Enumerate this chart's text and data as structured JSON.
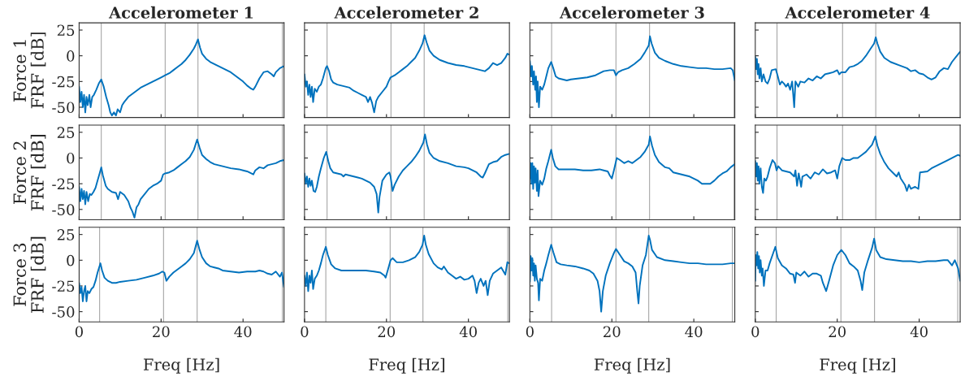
{
  "chart_data": [
    {
      "type": "line",
      "title": "Accelerometer 1",
      "ylabel": "Force 1\nFRF [dB]",
      "xlim": [
        0,
        50
      ],
      "ylim": [
        -60,
        32
      ],
      "xticks": [
        0,
        20,
        40
      ],
      "yticks": [
        -50,
        -25,
        0,
        25
      ],
      "tick_labels": "y",
      "ref_lines": [
        {
          "axis": "x",
          "value": 5.4,
          "color": "#a6a6a6"
        },
        {
          "axis": "x",
          "value": 21,
          "color": "#a6a6a6"
        },
        {
          "axis": "x",
          "value": 29,
          "color": "#a6a6a6"
        },
        {
          "axis": "x",
          "value": 49.6,
          "color": "#a6a6a6"
        }
      ],
      "x": [
        0,
        0.3,
        0.6,
        0.9,
        1.2,
        1.5,
        1.8,
        2.1,
        2.5,
        2.8,
        3.2,
        3.6,
        4.2,
        4.8,
        5.4,
        6.0,
        6.6,
        7.2,
        7.6,
        8.0,
        8.5,
        9.0,
        9.4,
        10,
        10.5,
        11,
        12,
        13,
        14,
        15,
        16,
        17,
        18,
        19,
        20,
        21,
        22,
        23,
        24,
        25,
        26,
        27,
        28,
        28.5,
        29,
        29.5,
        30,
        31,
        32,
        33,
        34,
        35,
        36,
        37,
        38,
        39,
        40,
        41,
        42,
        42.5,
        43,
        44,
        45,
        46,
        47,
        47.5,
        48,
        49,
        50
      ],
      "series": [
        {
          "color": "#0072bd",
          "values": [
            -30,
            -45,
            -35,
            -50,
            -38,
            -55,
            -40,
            -48,
            -38,
            -50,
            -40,
            -38,
            -33,
            -27,
            -23,
            -30,
            -40,
            -48,
            -55,
            -58,
            -55,
            -58,
            -52,
            -55,
            -48,
            -45,
            -40,
            -37,
            -34,
            -31,
            -29,
            -27,
            -25,
            -23,
            -21,
            -19,
            -17,
            -14,
            -11,
            -8,
            -4,
            1,
            7,
            11,
            16,
            8,
            2,
            -3,
            -6,
            -8,
            -10,
            -12,
            -14,
            -16,
            -19,
            -22,
            -25,
            -29,
            -32,
            -33,
            -30,
            -22,
            -16,
            -15,
            -18,
            -20,
            -16,
            -12,
            -10
          ]
        }
      ]
    },
    {
      "type": "line",
      "title": "Accelerometer 2",
      "xlim": [
        0,
        50
      ],
      "ylim": [
        -60,
        32
      ],
      "xticks": [
        0,
        20,
        40
      ],
      "yticks": [
        -50,
        -25,
        0,
        25
      ],
      "tick_labels": false,
      "ref_lines": [
        {
          "axis": "x",
          "value": 5.5,
          "color": "#a6a6a6"
        },
        {
          "axis": "x",
          "value": 21.1,
          "color": "#a6a6a6"
        },
        {
          "axis": "x",
          "value": 29.2,
          "color": "#a6a6a6"
        }
      ],
      "x": [
        0,
        0.3,
        0.6,
        0.9,
        1.2,
        1.5,
        1.8,
        2.1,
        2.5,
        3,
        3.5,
        4,
        4.5,
        5.2,
        5.5,
        6,
        6.5,
        7,
        8,
        9,
        10,
        11,
        12,
        13,
        14,
        15,
        15.5,
        16,
        16.5,
        17,
        17.5,
        18,
        19,
        20,
        20.5,
        21,
        22,
        23,
        24,
        25,
        26,
        27,
        28,
        28.8,
        29.3,
        29.8,
        30.5,
        31.5,
        33,
        35,
        37,
        39,
        41,
        43,
        44,
        45,
        46,
        47,
        48,
        49,
        49.5,
        50
      ],
      "series": [
        {
          "color": "#0072bd",
          "values": [
            -18,
            -30,
            -25,
            -38,
            -28,
            -40,
            -30,
            -45,
            -32,
            -35,
            -30,
            -28,
            -22,
            -12,
            -10,
            -15,
            -23,
            -26,
            -28,
            -29,
            -30,
            -31,
            -34,
            -36,
            -38,
            -40,
            -45,
            -40,
            -46,
            -55,
            -44,
            -40,
            -35,
            -30,
            -25,
            -21,
            -19,
            -16,
            -13,
            -10,
            -6,
            -2,
            5,
            12,
            20,
            13,
            5,
            0,
            -4,
            -7,
            -9,
            -10,
            -12,
            -14,
            -15,
            -12,
            -7,
            -9,
            -7,
            -2,
            2,
            1
          ]
        }
      ]
    },
    {
      "type": "line",
      "title": "Accelerometer 3",
      "xlim": [
        0,
        50
      ],
      "ylim": [
        -60,
        32
      ],
      "xticks": [
        0,
        20,
        40
      ],
      "yticks": [
        -50,
        -25,
        0,
        25
      ],
      "tick_labels": false,
      "ref_lines": [
        {
          "axis": "x",
          "value": 5.3,
          "color": "#a6a6a6"
        },
        {
          "axis": "x",
          "value": 21,
          "color": "#a6a6a6"
        },
        {
          "axis": "x",
          "value": 29.2,
          "color": "#a6a6a6"
        },
        {
          "axis": "x",
          "value": 49.8,
          "color": "#a6a6a6"
        }
      ],
      "x": [
        0,
        0.3,
        0.5,
        0.8,
        1.0,
        1.3,
        1.5,
        1.7,
        1.9,
        2.2,
        2.5,
        3,
        3.5,
        4,
        4.5,
        5.2,
        5.7,
        6.3,
        7,
        8,
        9,
        10,
        12,
        14,
        16,
        17,
        18,
        19.5,
        20.5,
        21,
        21.5,
        22.5,
        24,
        25.5,
        27,
        28,
        29,
        29.3,
        29.7,
        30.5,
        31.5,
        33,
        35,
        37,
        39,
        41,
        43,
        45,
        47,
        49,
        49.5,
        50
      ],
      "series": [
        {
          "color": "#0072bd",
          "values": [
            -5,
            -20,
            -10,
            -28,
            -15,
            -33,
            -20,
            -45,
            -25,
            -50,
            -30,
            -33,
            -28,
            -20,
            -12,
            -6,
            -12,
            -20,
            -22,
            -23,
            -24,
            -23,
            -22,
            -21,
            -19,
            -17,
            -15,
            -14,
            -14,
            -19,
            -16,
            -14,
            -12,
            -8,
            -3,
            3,
            10,
            19,
            12,
            3,
            -2,
            -5,
            -8,
            -10,
            -11,
            -12,
            -12,
            -13,
            -13,
            -12,
            -14,
            -24
          ]
        }
      ]
    },
    {
      "type": "line",
      "title": "Accelerometer 4",
      "xlim": [
        0,
        50
      ],
      "ylim": [
        -60,
        32
      ],
      "xticks": [
        0,
        20,
        40
      ],
      "yticks": [
        -50,
        -25,
        0,
        25
      ],
      "tick_labels": false,
      "ref_lines": [
        {
          "axis": "x",
          "value": 5.3,
          "color": "#a6a6a6"
        },
        {
          "axis": "x",
          "value": 21.3,
          "color": "#a6a6a6"
        },
        {
          "axis": "x",
          "value": 29.4,
          "color": "#a6a6a6"
        }
      ],
      "x": [
        0,
        0.2,
        0.4,
        0.6,
        0.8,
        1.0,
        1.3,
        1.6,
        2,
        2.5,
        3,
        3.5,
        4,
        5,
        5.5,
        6,
        6.5,
        7,
        7.5,
        8,
        8.5,
        9,
        9.5,
        9.8,
        10.5,
        11,
        12,
        13,
        14,
        15,
        16,
        17,
        18,
        19,
        20,
        20.5,
        21,
        22,
        23,
        24,
        25,
        26,
        27,
        28,
        29,
        29.4,
        29.8,
        30.5,
        31.5,
        33,
        35,
        37,
        38,
        39,
        40,
        41,
        42,
        43,
        44,
        45,
        46,
        47,
        48,
        49,
        50
      ],
      "series": [
        {
          "color": "#0072bd",
          "values": [
            -1,
            -13,
            -3,
            -18,
            -8,
            -22,
            -12,
            -25,
            -18,
            -25,
            -27,
            -22,
            -14,
            -13,
            -20,
            -28,
            -25,
            -27,
            -30,
            -27,
            -33,
            -25,
            -50,
            -25,
            -30,
            -25,
            -26,
            -22,
            -24,
            -20,
            -22,
            -18,
            -17,
            -16,
            -14,
            -18,
            -16,
            -16,
            -11,
            -10,
            -8,
            -5,
            0,
            6,
            12,
            18,
            12,
            4,
            -2,
            -6,
            -9,
            -12,
            -15,
            -14,
            -17,
            -18,
            -21,
            -23,
            -21,
            -15,
            -12,
            -13,
            -6,
            -1,
            4
          ]
        }
      ]
    },
    {
      "type": "line",
      "ylabel": "Force 2\nFRF [dB]",
      "xlim": [
        0,
        50
      ],
      "ylim": [
        -60,
        32
      ],
      "xticks": [
        0,
        20,
        40
      ],
      "yticks": [
        -50,
        -25,
        0,
        25
      ],
      "tick_labels": "y",
      "ref_lines": [
        {
          "axis": "x",
          "value": 5.4,
          "color": "#a6a6a6"
        },
        {
          "axis": "x",
          "value": 21,
          "color": "#a6a6a6"
        },
        {
          "axis": "x",
          "value": 29,
          "color": "#a6a6a6"
        },
        {
          "axis": "x",
          "value": 49.6,
          "color": "#a6a6a6"
        }
      ],
      "x": [
        0,
        0.3,
        0.6,
        0.9,
        1.2,
        1.5,
        1.8,
        2.2,
        2.6,
        3,
        3.5,
        4,
        4.5,
        5,
        5.4,
        5.8,
        6.5,
        7,
        8,
        9,
        9.5,
        10,
        11,
        12,
        12.5,
        13,
        13.5,
        14,
        14.5,
        15,
        16,
        17,
        18,
        19,
        20,
        20.5,
        21,
        22,
        23,
        24,
        25,
        26,
        27,
        28,
        28.8,
        29.4,
        30,
        31,
        32,
        33,
        35,
        37,
        39,
        40,
        41,
        42,
        42.5,
        43,
        44,
        45,
        46,
        48,
        49,
        50
      ],
      "series": [
        {
          "color": "#0072bd",
          "values": [
            -28,
            -42,
            -30,
            -40,
            -32,
            -45,
            -33,
            -42,
            -35,
            -36,
            -33,
            -29,
            -22,
            -15,
            -9,
            -17,
            -27,
            -30,
            -33,
            -34,
            -40,
            -33,
            -36,
            -42,
            -48,
            -52,
            -58,
            -48,
            -45,
            -40,
            -35,
            -30,
            -27,
            -25,
            -22,
            -16,
            -15,
            -14,
            -12,
            -9,
            -6,
            -3,
            1,
            8,
            18,
            10,
            3,
            -1,
            -4,
            -6,
            -8,
            -10,
            -11,
            -12,
            -13,
            -15,
            -16,
            -12,
            -9,
            -10,
            -7,
            -5,
            -3,
            -2
          ]
        }
      ]
    },
    {
      "type": "line",
      "xlim": [
        0,
        50
      ],
      "ylim": [
        -60,
        32
      ],
      "xticks": [
        0,
        20,
        40
      ],
      "yticks": [
        -50,
        -25,
        0,
        25
      ],
      "tick_labels": false,
      "ref_lines": [
        {
          "axis": "x",
          "value": 5.5,
          "color": "#a6a6a6"
        },
        {
          "axis": "x",
          "value": 21.1,
          "color": "#a6a6a6"
        },
        {
          "axis": "x",
          "value": 29.2,
          "color": "#a6a6a6"
        }
      ],
      "x": [
        0,
        0.3,
        0.6,
        0.9,
        1.2,
        1.5,
        1.8,
        2.2,
        2.6,
        3,
        3.5,
        4,
        4.7,
        5.3,
        5.8,
        6.3,
        7,
        8,
        9,
        9.5,
        10,
        11,
        12,
        13,
        14,
        15,
        16,
        17,
        17.6,
        18,
        18.3,
        19,
        20,
        20.7,
        21,
        21.5,
        22,
        23,
        24,
        25,
        26,
        27,
        28,
        29,
        29.4,
        29.9,
        30.5,
        31.5,
        33,
        35,
        37,
        39,
        40,
        41,
        42,
        43,
        43.5,
        44,
        45,
        46,
        47,
        48,
        49,
        50
      ],
      "series": [
        {
          "color": "#0072bd",
          "values": [
            -15,
            -25,
            -18,
            -28,
            -20,
            -27,
            -22,
            -32,
            -33,
            -28,
            -18,
            -10,
            0,
            6,
            -3,
            -10,
            -14,
            -15,
            -16,
            -18,
            -16,
            -17,
            -18,
            -19,
            -20,
            -22,
            -24,
            -28,
            -35,
            -53,
            -38,
            -22,
            -16,
            -14,
            -18,
            -32,
            -26,
            -18,
            -12,
            -8,
            -4,
            1,
            7,
            15,
            23,
            13,
            5,
            0,
            -3,
            -5,
            -8,
            -9,
            -10,
            -12,
            -14,
            -18,
            -19,
            -15,
            -6,
            -4,
            -3,
            1,
            3,
            4
          ]
        }
      ]
    },
    {
      "type": "line",
      "xlim": [
        0,
        50
      ],
      "ylim": [
        -60,
        32
      ],
      "xticks": [
        0,
        20,
        40
      ],
      "yticks": [
        -50,
        -25,
        0,
        25
      ],
      "tick_labels": false,
      "ref_lines": [
        {
          "axis": "x",
          "value": 5.3,
          "color": "#a6a6a6"
        },
        {
          "axis": "x",
          "value": 21,
          "color": "#a6a6a6"
        },
        {
          "axis": "x",
          "value": 29.2,
          "color": "#a6a6a6"
        },
        {
          "axis": "x",
          "value": 49.8,
          "color": "#a6a6a6"
        }
      ],
      "x": [
        0,
        0.2,
        0.4,
        0.6,
        0.8,
        1.0,
        1.2,
        1.4,
        1.7,
        1.9,
        2.1,
        2.5,
        3,
        3.5,
        4,
        4.5,
        5.2,
        5.6,
        6.2,
        7,
        9,
        11,
        13,
        15,
        17,
        18,
        19,
        19.5,
        20,
        20.5,
        21.2,
        22,
        23,
        24,
        25,
        26,
        27,
        28,
        29,
        29.3,
        29.8,
        30.5,
        31.5,
        33,
        34,
        35,
        36,
        38,
        39,
        40,
        41,
        42,
        43,
        44,
        45,
        46,
        47,
        48,
        49,
        50
      ],
      "series": [
        {
          "color": "#0072bd",
          "values": [
            -20,
            -5,
            -25,
            -5,
            -30,
            -8,
            -24,
            -10,
            -32,
            -12,
            -37,
            -22,
            -26,
            -20,
            -10,
            -3,
            8,
            0,
            -8,
            -11,
            -11,
            -11,
            -12,
            -12,
            -11,
            -12,
            -13,
            -17,
            -20,
            -12,
            0,
            -2,
            -5,
            -3,
            -5,
            -2,
            1,
            6,
            13,
            21,
            12,
            3,
            -4,
            -9,
            -10,
            -14,
            -15,
            -17,
            -18,
            -20,
            -22,
            -25,
            -25,
            -25,
            -22,
            -18,
            -15,
            -13,
            -9,
            -6
          ]
        }
      ]
    },
    {
      "type": "line",
      "xlim": [
        0,
        50
      ],
      "ylim": [
        -60,
        32
      ],
      "xticks": [
        0,
        20,
        40
      ],
      "yticks": [
        -50,
        -25,
        0,
        25
      ],
      "tick_labels": false,
      "ref_lines": [
        {
          "axis": "x",
          "value": 5.3,
          "color": "#a6a6a6"
        },
        {
          "axis": "x",
          "value": 21.3,
          "color": "#a6a6a6"
        },
        {
          "axis": "x",
          "value": 29.4,
          "color": "#a6a6a6"
        }
      ],
      "x": [
        0,
        0.2,
        0.4,
        0.6,
        0.8,
        1.0,
        1.3,
        1.6,
        1.9,
        2.2,
        2.6,
        3,
        3.5,
        4.2,
        4.8,
        5.2,
        5.6,
        6.5,
        7.5,
        8.5,
        9.5,
        9.8,
        10.2,
        10.6,
        11.2,
        11.5,
        12.5,
        13.5,
        14.5,
        15.5,
        16.5,
        17.5,
        18.5,
        19.5,
        20,
        20.5,
        21.2,
        22,
        23,
        24,
        25,
        26,
        27,
        28.5,
        29.3,
        29.8,
        30.5,
        31.5,
        32.5,
        33.5,
        34.5,
        35,
        35.5,
        36.5,
        37,
        37.5,
        38,
        39,
        39.8,
        40.2,
        42,
        43,
        45,
        47,
        49,
        49.5,
        50
      ],
      "series": [
        {
          "color": "#0072bd",
          "values": [
            -3,
            -18,
            -5,
            -22,
            -8,
            -25,
            -10,
            -28,
            -34,
            -20,
            -22,
            -18,
            -10,
            -2,
            -5,
            -12,
            -8,
            -12,
            -13,
            -14,
            -18,
            -12,
            -27,
            -15,
            -28,
            -18,
            -16,
            -20,
            -14,
            -16,
            -11,
            -15,
            -14,
            -12,
            -20,
            -8,
            0,
            -2,
            -2,
            0,
            0,
            3,
            6,
            13,
            21,
            12,
            4,
            -4,
            -10,
            -14,
            -18,
            -14,
            -20,
            -26,
            -32,
            -26,
            -30,
            -28,
            -30,
            -14,
            -13,
            -10,
            -6,
            -2,
            2,
            3,
            2
          ]
        }
      ]
    },
    {
      "type": "line",
      "xlabel": "Freq [Hz]",
      "ylabel": "Force 3\nFRF [dB]",
      "xlim": [
        0,
        50
      ],
      "ylim": [
        -60,
        32
      ],
      "xticks": [
        0,
        20,
        40
      ],
      "yticks": [
        -50,
        -25,
        0,
        25
      ],
      "ref_lines": [
        {
          "axis": "x",
          "value": 5,
          "color": "#a6a6a6"
        },
        {
          "axis": "x",
          "value": 20.6,
          "color": "#a6a6a6"
        },
        {
          "axis": "x",
          "value": 28.8,
          "color": "#a6a6a6"
        },
        {
          "axis": "x",
          "value": 49.6,
          "color": "#a6a6a6"
        }
      ],
      "x": [
        0,
        0.3,
        0.6,
        0.9,
        1.2,
        1.5,
        1.8,
        2.1,
        2.5,
        3,
        3.5,
        4,
        4.5,
        5.2,
        5.6,
        6.2,
        7,
        8,
        9,
        10,
        12,
        14,
        16,
        18,
        19.5,
        20.3,
        20.8,
        21.3,
        22,
        23,
        24,
        25,
        26,
        27,
        28,
        28.8,
        29.4,
        30,
        31,
        32,
        33,
        34,
        35,
        37,
        39,
        41,
        43,
        44,
        45,
        46,
        47,
        48,
        49,
        49.5,
        50
      ],
      "series": [
        {
          "color": "#0072bd",
          "values": [
            -22,
            -32,
            -26,
            -40,
            -30,
            -25,
            -40,
            -30,
            -32,
            -28,
            -26,
            -20,
            -12,
            -3,
            -10,
            -17,
            -20,
            -22,
            -22,
            -21,
            -20,
            -19,
            -17,
            -15,
            -13,
            -11,
            -12,
            -20,
            -16,
            -12,
            -9,
            -6,
            -3,
            1,
            7,
            19,
            10,
            3,
            -3,
            -6,
            -7,
            -8,
            -10,
            -11,
            -12,
            -11,
            -11,
            -10,
            -11,
            -13,
            -14,
            -11,
            -16,
            -12,
            -26
          ]
        }
      ]
    },
    {
      "type": "line",
      "xlabel": "Freq [Hz]",
      "xlim": [
        0,
        50
      ],
      "ylim": [
        -60,
        32
      ],
      "xticks": [
        0,
        20,
        40
      ],
      "yticks": [
        -50,
        -25,
        0,
        25
      ],
      "tick_labels": "x",
      "ref_lines": [
        {
          "axis": "x",
          "value": 5.2,
          "color": "#a6a6a6"
        },
        {
          "axis": "x",
          "value": 20.9,
          "color": "#a6a6a6"
        },
        {
          "axis": "x",
          "value": 28.9,
          "color": "#a6a6a6"
        },
        {
          "axis": "x",
          "value": 49.6,
          "color": "#a6a6a6"
        }
      ],
      "x": [
        0,
        0.3,
        0.6,
        0.9,
        1.2,
        1.5,
        1.8,
        2.1,
        2.5,
        3,
        3.5,
        4,
        4.5,
        5.2,
        5.7,
        6.5,
        7.5,
        9,
        11,
        13,
        15,
        17,
        18.5,
        19.5,
        19.8,
        20.3,
        21,
        21.5,
        22.5,
        24,
        25.5,
        27,
        28,
        28.8,
        29.2,
        29.6,
        30.3,
        31.5,
        32.5,
        33.5,
        34,
        35,
        36,
        37,
        38,
        39,
        40,
        41,
        41.5,
        42,
        42.5,
        43,
        43.7,
        44.2,
        44.7,
        45.2,
        46,
        47,
        48,
        49,
        49.5,
        50
      ],
      "series": [
        {
          "color": "#0072bd",
          "values": [
            -15,
            -25,
            -12,
            -30,
            -15,
            -22,
            -10,
            -28,
            -18,
            -15,
            -10,
            -3,
            5,
            13,
            5,
            -4,
            -8,
            -10,
            -10,
            -10,
            -10,
            -11,
            -12,
            -15,
            -17,
            -10,
            0,
            2,
            -2,
            -2,
            0,
            3,
            8,
            15,
            24,
            15,
            6,
            -3,
            -7,
            -9,
            -6,
            -12,
            -15,
            -18,
            -16,
            -19,
            -18,
            -15,
            -20,
            -32,
            -22,
            -18,
            -25,
            -20,
            -34,
            -20,
            -13,
            -10,
            -7,
            -14,
            -2,
            -3
          ]
        }
      ]
    },
    {
      "type": "line",
      "xlabel": "Freq [Hz]",
      "xlim": [
        0,
        50
      ],
      "ylim": [
        -60,
        32
      ],
      "xticks": [
        0,
        20,
        40
      ],
      "yticks": [
        -50,
        -25,
        0,
        25
      ],
      "tick_labels": "x",
      "ref_lines": [
        {
          "axis": "x",
          "value": 5.3,
          "color": "#a6a6a6"
        },
        {
          "axis": "x",
          "value": 21,
          "color": "#a6a6a6"
        },
        {
          "axis": "x",
          "value": 29,
          "color": "#a6a6a6"
        },
        {
          "axis": "x",
          "value": 49.4,
          "color": "#a6a6a6"
        }
      ],
      "x": [
        0,
        0.2,
        0.4,
        0.6,
        0.8,
        1.0,
        1.2,
        1.4,
        1.7,
        2.0,
        2.2,
        2.5,
        3,
        3.5,
        4,
        4.5,
        5.2,
        5.7,
        6.5,
        7.5,
        9,
        11,
        13,
        14.5,
        15.5,
        16.5,
        17,
        17.4,
        17.8,
        18.5,
        19.5,
        20.5,
        21,
        22,
        23,
        24,
        25,
        25.8,
        26.2,
        26.5,
        26.8,
        27.5,
        28.3,
        29,
        29.3,
        29.8,
        31,
        33,
        35,
        37,
        39,
        41,
        43,
        45,
        47,
        49,
        50
      ],
      "series": [
        {
          "color": "#0072bd",
          "values": [
            -21,
            4,
            -10,
            2,
            -15,
            -3,
            -20,
            -5,
            -18,
            -22,
            -39,
            -18,
            -20,
            -10,
            -3,
            5,
            15,
            8,
            -2,
            -4,
            -5,
            -6,
            -8,
            -10,
            -13,
            -20,
            -30,
            -50,
            -30,
            -15,
            -3,
            7,
            11,
            5,
            -1,
            -3,
            -6,
            -12,
            -30,
            -42,
            -25,
            -5,
            5,
            24,
            20,
            10,
            3,
            0,
            -1,
            -2,
            -3,
            -3,
            -4,
            -4,
            -4,
            -3,
            -3
          ]
        }
      ]
    },
    {
      "type": "line",
      "xlabel": "Freq [Hz]",
      "xlim": [
        0,
        50
      ],
      "ylim": [
        -60,
        32
      ],
      "xticks": [
        0,
        20,
        40
      ],
      "yticks": [
        -50,
        -25,
        0,
        25
      ],
      "tick_labels": "x",
      "ref_lines": [
        {
          "axis": "x",
          "value": 5.1,
          "color": "#a6a6a6"
        },
        {
          "axis": "x",
          "value": 20.9,
          "color": "#a6a6a6"
        },
        {
          "axis": "x",
          "value": 29.1,
          "color": "#a6a6a6"
        },
        {
          "axis": "x",
          "value": 49.4,
          "color": "#a6a6a6"
        }
      ],
      "x": [
        0,
        0.1,
        0.3,
        0.5,
        0.7,
        0.9,
        1.1,
        1.3,
        1.6,
        1.8,
        2.1,
        2.5,
        3,
        3.5,
        4.2,
        4.9,
        5.5,
        6.5,
        7.5,
        8.5,
        9.3,
        9.7,
        10,
        11,
        12,
        13,
        14,
        15,
        16,
        16.5,
        17.3,
        18,
        19,
        20,
        21,
        22,
        23,
        24,
        25,
        25.7,
        26.1,
        26.6,
        27.5,
        28.5,
        29,
        29.5,
        30.5,
        32,
        34,
        36,
        38,
        40,
        42,
        44,
        46,
        47,
        48,
        48.7,
        49.5,
        50
      ],
      "series": [
        {
          "color": "#0072bd",
          "values": [
            -20,
            5,
            -5,
            8,
            -8,
            4,
            -12,
            0,
            -15,
            -8,
            -25,
            -10,
            -10,
            -3,
            5,
            13,
            2,
            -5,
            -8,
            -13,
            -14,
            -22,
            -12,
            -15,
            -11,
            -16,
            -13,
            -13,
            -15,
            -22,
            -30,
            -20,
            -5,
            5,
            10,
            5,
            -3,
            -6,
            -10,
            -20,
            -29,
            -12,
            0,
            12,
            21,
            10,
            3,
            1,
            0,
            -1,
            -1,
            -2,
            -1,
            -1,
            0,
            0,
            -5,
            0,
            -8,
            -20
          ]
        }
      ]
    }
  ]
}
